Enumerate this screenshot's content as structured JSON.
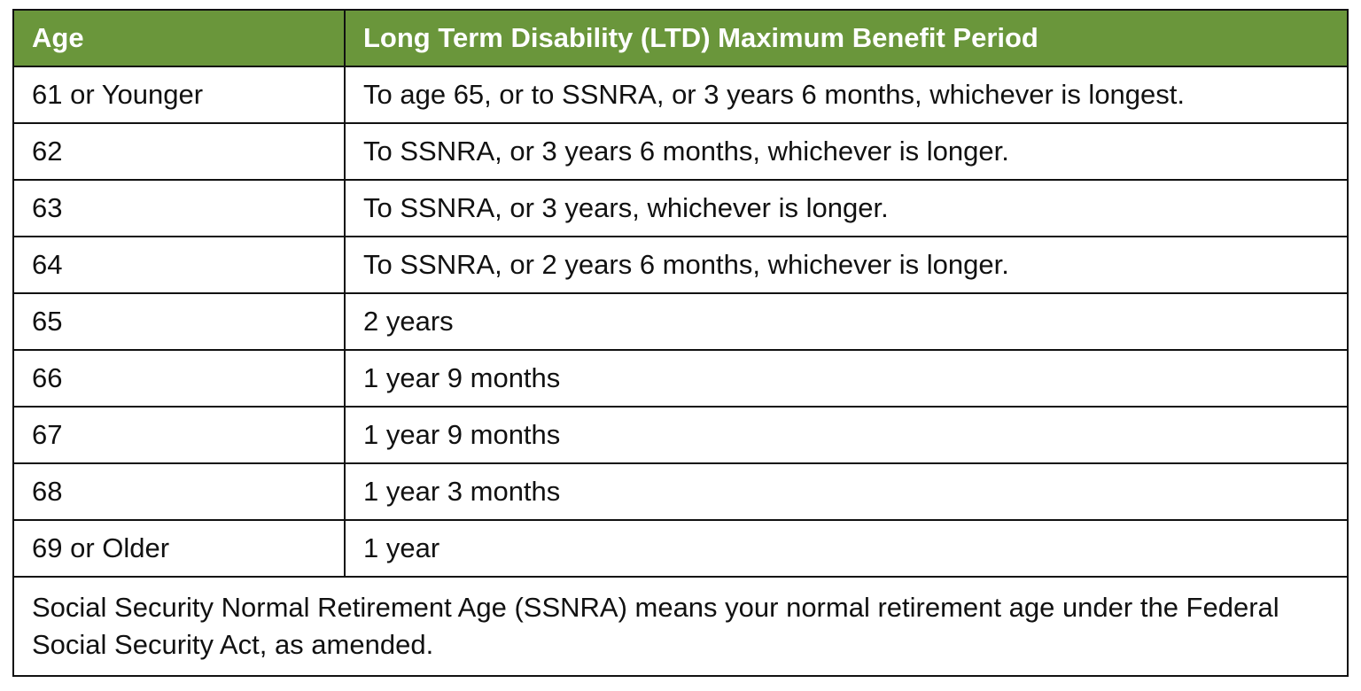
{
  "header": {
    "age_label": "Age",
    "period_label": "Long Term Disability (LTD) Maximum Benefit Period"
  },
  "rows": [
    {
      "age": "61 or Younger",
      "period": "To age 65, or to SSNRA, or 3 years 6 months, whichever is longest."
    },
    {
      "age": "62",
      "period": "To SSNRA, or 3 years 6 months, whichever is longer."
    },
    {
      "age": "63",
      "period": "To SSNRA, or 3 years, whichever is longer."
    },
    {
      "age": "64",
      "period": "To SSNRA, or 2 years 6 months, whichever is longer."
    },
    {
      "age": "65",
      "period": "2 years"
    },
    {
      "age": "66",
      "period": "1 year 9 months"
    },
    {
      "age": "67",
      "period": "1 year 9 months"
    },
    {
      "age": "68",
      "period": "1 year 3 months"
    },
    {
      "age": "69 or Older",
      "period": "1 year"
    }
  ],
  "footnote": "Social Security Normal Retirement Age (SSNRA) means your normal retirement age under the Federal Social Security Act, as amended.",
  "colors": {
    "header_background": "#6a963b",
    "header_text": "#ffffff",
    "border": "#111111"
  }
}
